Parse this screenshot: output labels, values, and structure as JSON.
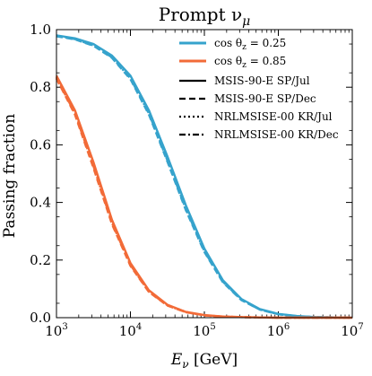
{
  "chart_data": {
    "type": "line",
    "title": "Prompt νμ",
    "title_base": "Prompt ν",
    "title_sub": "μ",
    "xlabel": "Eν [GeV]",
    "xlabel_base": "E",
    "xlabel_sub": "ν",
    "xlabel_unit": " [GeV]",
    "ylabel": "Passing fraction",
    "xscale": "log",
    "xlim": [
      1000,
      10000000
    ],
    "ylim": [
      0.0,
      1.0
    ],
    "x_ticks": [
      {
        "value": 1000,
        "base": "10",
        "exp": "3"
      },
      {
        "value": 10000,
        "base": "10",
        "exp": "4"
      },
      {
        "value": 100000,
        "base": "10",
        "exp": "5"
      },
      {
        "value": 1000000,
        "base": "10",
        "exp": "6"
      },
      {
        "value": 10000000,
        "base": "10",
        "exp": "7"
      }
    ],
    "y_ticks": [
      {
        "value": 0.0,
        "label": "0.0"
      },
      {
        "value": 0.2,
        "label": "0.2"
      },
      {
        "value": 0.4,
        "label": "0.4"
      },
      {
        "value": 0.6,
        "label": "0.6"
      },
      {
        "value": 0.8,
        "label": "0.8"
      },
      {
        "value": 1.0,
        "label": "1.0"
      }
    ],
    "grid": false,
    "legend_position": "top-right",
    "legend": [
      {
        "label": "cos θz = 0.25",
        "label_base": "cos θ",
        "label_sub": "z",
        "label_rest": " = 0.25",
        "color": "#36a3cc",
        "style": "solid"
      },
      {
        "label": "cos θz = 0.85",
        "label_base": "cos θ",
        "label_sub": "z",
        "label_rest": " = 0.85",
        "color": "#f26b38",
        "style": "solid"
      },
      {
        "label": "MSIS-90-E SP/Jul",
        "color": "#000000",
        "style": "solid"
      },
      {
        "label": "MSIS-90-E SP/Dec",
        "color": "#000000",
        "style": "dashed"
      },
      {
        "label": "NRLMSISE-00 KR/Jul",
        "color": "#000000",
        "style": "dotted"
      },
      {
        "label": "NRLMSISE-00 KR/Dec",
        "color": "#000000",
        "style": "dashdot"
      }
    ],
    "x": [
      1000,
      1778,
      3162,
      5623,
      10000,
      17783,
      31623,
      56234,
      100000,
      177828,
      316228,
      562341,
      1000000,
      1778279,
      3162278,
      5623413,
      10000000
    ],
    "series": [
      {
        "cos_theta": 0.25,
        "model": "MSIS-90-E SP/Jul",
        "color": "#36a3cc",
        "style": "solid",
        "values": [
          0.98,
          0.97,
          0.95,
          0.91,
          0.84,
          0.72,
          0.56,
          0.39,
          0.24,
          0.13,
          0.065,
          0.03,
          0.013,
          0.006,
          0.002,
          0.001,
          0.0
        ]
      },
      {
        "cos_theta": 0.25,
        "model": "MSIS-90-E SP/Dec",
        "color": "#36a3cc",
        "style": "dashed",
        "values": [
          0.977,
          0.966,
          0.944,
          0.902,
          0.828,
          0.705,
          0.542,
          0.373,
          0.228,
          0.123,
          0.061,
          0.028,
          0.012,
          0.005,
          0.002,
          0.001,
          0.0
        ]
      },
      {
        "cos_theta": 0.25,
        "model": "NRLMSISE-00 KR/Jul",
        "color": "#36a3cc",
        "style": "dotted",
        "values": [
          0.979,
          0.968,
          0.947,
          0.906,
          0.834,
          0.713,
          0.551,
          0.381,
          0.234,
          0.127,
          0.063,
          0.029,
          0.012,
          0.005,
          0.002,
          0.001,
          0.0
        ]
      },
      {
        "cos_theta": 0.25,
        "model": "NRLMSISE-00 KR/Dec",
        "color": "#36a3cc",
        "style": "dashdot",
        "values": [
          0.978,
          0.967,
          0.945,
          0.904,
          0.831,
          0.709,
          0.546,
          0.377,
          0.231,
          0.125,
          0.062,
          0.028,
          0.012,
          0.005,
          0.002,
          0.001,
          0.0
        ]
      },
      {
        "cos_theta": 0.85,
        "model": "MSIS-90-E SP/Jul",
        "color": "#f26b38",
        "style": "solid",
        "values": [
          0.84,
          0.72,
          0.54,
          0.34,
          0.19,
          0.095,
          0.045,
          0.02,
          0.009,
          0.004,
          0.002,
          0.001,
          0.0,
          0.0,
          0.0,
          0.0,
          0.0
        ]
      },
      {
        "cos_theta": 0.85,
        "model": "MSIS-90-E SP/Dec",
        "color": "#f26b38",
        "style": "dashed",
        "values": [
          0.83,
          0.705,
          0.52,
          0.325,
          0.18,
          0.089,
          0.042,
          0.019,
          0.008,
          0.003,
          0.002,
          0.001,
          0.0,
          0.0,
          0.0,
          0.0,
          0.0
        ]
      },
      {
        "cos_theta": 0.85,
        "model": "NRLMSISE-00 KR/Jul",
        "color": "#f26b38",
        "style": "dotted",
        "values": [
          0.836,
          0.714,
          0.532,
          0.334,
          0.186,
          0.092,
          0.044,
          0.02,
          0.008,
          0.004,
          0.002,
          0.001,
          0.0,
          0.0,
          0.0,
          0.0,
          0.0
        ]
      },
      {
        "cos_theta": 0.85,
        "model": "NRLMSISE-00 KR/Dec",
        "color": "#f26b38",
        "style": "dashdot",
        "values": [
          0.833,
          0.709,
          0.526,
          0.329,
          0.183,
          0.09,
          0.043,
          0.019,
          0.008,
          0.004,
          0.002,
          0.001,
          0.0,
          0.0,
          0.0,
          0.0,
          0.0
        ]
      }
    ]
  }
}
